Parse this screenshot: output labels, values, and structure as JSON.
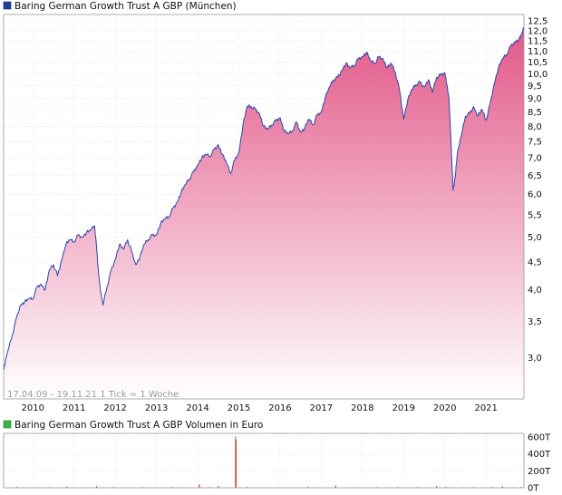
{
  "chart_data": [
    {
      "type": "area",
      "title": "Baring German Growth Trust A GBP (München)",
      "date_range_note": "17.04.09 - 19.11.21   1 Tick = 1 Woche",
      "x_tick_labels": [
        "2010",
        "2011",
        "2012",
        "2013",
        "2014",
        "2015",
        "2016",
        "2017",
        "2018",
        "2019",
        "2020",
        "2021"
      ],
      "y_tick_labels": [
        "3,0",
        "3,5",
        "4,0",
        "4,5",
        "5,0",
        "5,5",
        "6,0",
        "6,5",
        "7,0",
        "7,5",
        "8,0",
        "8,5",
        "9,0",
        "9,5",
        "10,0",
        "10,5",
        "11,0",
        "11,5",
        "12,0",
        "12,5"
      ],
      "y_scale": "log",
      "ylim": [
        2.52,
        12.85
      ],
      "xlim": [
        2009.29,
        2021.92
      ],
      "grid": true,
      "legend_color": "#1f3f9f",
      "line_color": "#2b45a8",
      "fill_top_color": "#e2588a",
      "fill_bottom_color": "#ffffff",
      "series": [
        {
          "x": [
            2009.29,
            2009.33,
            2009.4,
            2009.5,
            2009.6,
            2009.7,
            2009.8,
            2009.9,
            2010.0,
            2010.1,
            2010.2,
            2010.3,
            2010.4,
            2010.5,
            2010.6,
            2010.7,
            2010.8,
            2010.9,
            2011.0,
            2011.1,
            2011.2,
            2011.3,
            2011.4,
            2011.5,
            2011.55,
            2011.6,
            2011.65,
            2011.7,
            2011.8,
            2011.9,
            2012.0,
            2012.1,
            2012.2,
            2012.3,
            2012.4,
            2012.5,
            2012.6,
            2012.7,
            2012.8,
            2012.9,
            2013.0,
            2013.1,
            2013.2,
            2013.3,
            2013.4,
            2013.5,
            2013.6,
            2013.7,
            2013.8,
            2013.9,
            2014.0,
            2014.1,
            2014.2,
            2014.3,
            2014.4,
            2014.5,
            2014.6,
            2014.7,
            2014.8,
            2014.9,
            2015.0,
            2015.1,
            2015.2,
            2015.3,
            2015.4,
            2015.5,
            2015.6,
            2015.7,
            2015.8,
            2015.9,
            2016.0,
            2016.1,
            2016.2,
            2016.3,
            2016.4,
            2016.5,
            2016.6,
            2016.7,
            2016.8,
            2016.9,
            2017.0,
            2017.1,
            2017.2,
            2017.3,
            2017.4,
            2017.5,
            2017.6,
            2017.7,
            2017.8,
            2017.9,
            2018.0,
            2018.1,
            2018.2,
            2018.3,
            2018.4,
            2018.5,
            2018.6,
            2018.7,
            2018.8,
            2018.9,
            2019.0,
            2019.1,
            2019.2,
            2019.3,
            2019.4,
            2019.5,
            2019.6,
            2019.7,
            2019.8,
            2019.9,
            2020.0,
            2020.05,
            2020.1,
            2020.15,
            2020.2,
            2020.25,
            2020.3,
            2020.4,
            2020.5,
            2020.6,
            2020.7,
            2020.8,
            2020.9,
            2021.0,
            2021.1,
            2021.2,
            2021.3,
            2021.4,
            2021.5,
            2021.6,
            2021.7,
            2021.8,
            2021.88,
            2021.92
          ],
          "values": [
            2.85,
            2.95,
            3.1,
            3.3,
            3.55,
            3.75,
            3.8,
            3.85,
            3.85,
            4.05,
            4.1,
            4.0,
            4.35,
            4.45,
            4.25,
            4.55,
            4.85,
            4.95,
            4.9,
            5.05,
            5.0,
            5.1,
            5.15,
            5.25,
            4.75,
            4.25,
            3.95,
            3.75,
            4.05,
            4.35,
            4.55,
            4.85,
            4.75,
            4.95,
            4.7,
            4.45,
            4.6,
            4.85,
            4.95,
            5.05,
            5.05,
            5.3,
            5.4,
            5.45,
            5.65,
            5.8,
            6.05,
            6.25,
            6.4,
            6.6,
            6.8,
            7.0,
            7.1,
            7.05,
            7.25,
            7.4,
            7.1,
            6.85,
            6.55,
            6.95,
            7.15,
            8.05,
            8.7,
            8.7,
            8.6,
            8.45,
            8.0,
            7.9,
            8.05,
            8.2,
            8.3,
            7.85,
            7.75,
            7.85,
            8.15,
            7.8,
            7.95,
            8.25,
            8.05,
            8.4,
            8.5,
            9.05,
            9.45,
            9.75,
            9.85,
            10.15,
            10.45,
            10.25,
            10.35,
            10.65,
            10.75,
            10.95,
            10.55,
            10.45,
            10.75,
            10.65,
            10.25,
            10.45,
            10.05,
            9.35,
            8.25,
            8.95,
            9.35,
            9.55,
            9.65,
            9.45,
            9.75,
            9.25,
            9.85,
            9.95,
            10.05,
            9.55,
            9.0,
            7.5,
            6.1,
            6.45,
            7.1,
            7.7,
            8.35,
            8.45,
            8.7,
            8.35,
            8.6,
            8.2,
            8.8,
            9.6,
            10.25,
            10.65,
            10.85,
            11.25,
            11.45,
            11.55,
            11.9,
            12.2
          ]
        }
      ]
    },
    {
      "type": "bar",
      "title": "Baring German Growth Trust A GBP Volumen in Euro",
      "y_tick_labels": [
        "0T",
        "200T",
        "400T",
        "600T"
      ],
      "ylim": [
        0,
        640
      ],
      "legend_color": "#3db04a",
      "bar_colors": {
        "up": "#2ca02c",
        "down": "#d62728"
      },
      "series": [
        {
          "x": [
            2009.45,
            2009.62,
            2009.78,
            2010.12,
            2010.4,
            2010.58,
            2010.83,
            2011.02,
            2011.31,
            2011.55,
            2011.72,
            2011.96,
            2012.18,
            2012.47,
            2012.66,
            2012.88,
            2013.14,
            2013.36,
            2013.63,
            2013.9,
            2014.04,
            2014.28,
            2014.51,
            2014.76,
            2014.92,
            2014.93,
            2015.02,
            2015.2,
            2015.49,
            2015.71,
            2015.93,
            2016.15,
            2016.43,
            2016.68,
            2016.91,
            2017.1,
            2017.35,
            2017.6,
            2017.86,
            2018.08,
            2018.36,
            2018.62,
            2018.85,
            2019.07,
            2019.33,
            2019.55,
            2019.8,
            2020.03,
            2020.23,
            2020.46,
            2020.7,
            2020.93,
            2021.16,
            2021.4,
            2021.65,
            2021.85
          ],
          "values": [
            4,
            12,
            3,
            6,
            8,
            5,
            15,
            3,
            4,
            18,
            6,
            10,
            4,
            3,
            7,
            5,
            3,
            9,
            6,
            4,
            40,
            8,
            22,
            5,
            600,
            560,
            6,
            10,
            4,
            3,
            8,
            5,
            4,
            14,
            6,
            3,
            26,
            5,
            8,
            4,
            10,
            6,
            9,
            3,
            7,
            4,
            20,
            12,
            5,
            6,
            8,
            4,
            10,
            15,
            6,
            9
          ],
          "direction": [
            "up",
            "down",
            "up",
            "up",
            "down",
            "up",
            "up",
            "down",
            "up",
            "down",
            "up",
            "up",
            "down",
            "up",
            "down",
            "up",
            "up",
            "down",
            "up",
            "up",
            "down",
            "up",
            "up",
            "down",
            "up",
            "down",
            "up",
            "down",
            "up",
            "down",
            "up",
            "up",
            "down",
            "up",
            "down",
            "up",
            "down",
            "up",
            "up",
            "down",
            "up",
            "down",
            "up",
            "up",
            "down",
            "up",
            "down",
            "up",
            "down",
            "up",
            "up",
            "down",
            "up",
            "down",
            "up",
            "down"
          ]
        }
      ]
    }
  ]
}
